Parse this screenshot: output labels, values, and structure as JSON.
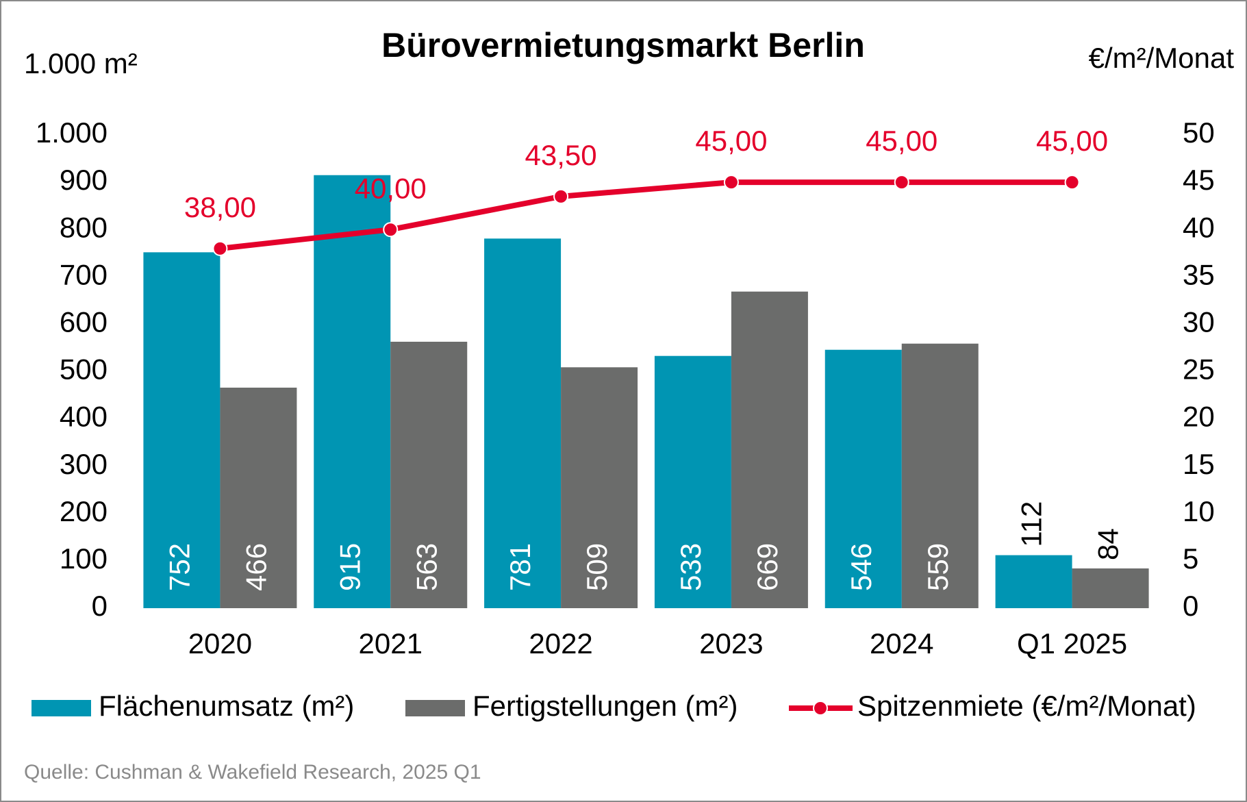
{
  "chart_data": {
    "type": "bar",
    "title": "Bürovermietungsmarkt Berlin",
    "y_axis_label": "1.000 m²",
    "y2_axis_label": "€/m²/Monat",
    "source": "Quelle: Cushman & Wakefield Research, 2025 Q1",
    "categories": [
      "2020",
      "2021",
      "2022",
      "2023",
      "2024",
      "Q1 2025"
    ],
    "series": [
      {
        "name": "Flächenumsatz (m²)",
        "type": "bar",
        "color": "#0095b3",
        "values": [
          752,
          915,
          781,
          533,
          546,
          112
        ]
      },
      {
        "name": "Fertigstellungen (m²)",
        "type": "bar",
        "color": "#6b6c6b",
        "values": [
          466,
          563,
          509,
          669,
          559,
          84
        ]
      },
      {
        "name": "Spitzenmiete (€/m²/Monat)",
        "type": "line",
        "axis": "y2",
        "color": "#e4002b",
        "values": [
          38,
          40,
          43.5,
          45,
          45,
          45
        ],
        "value_labels": [
          "38,00",
          "40,00",
          "43,50",
          "45,00",
          "45,00",
          "45,00"
        ]
      }
    ],
    "ylim": [
      0,
      1000
    ],
    "yticks": [
      0,
      100,
      200,
      300,
      400,
      500,
      600,
      700,
      800,
      900,
      {
        "value": 1000,
        "label": "1.000"
      }
    ],
    "y2lim": [
      0,
      50
    ],
    "y2ticks": [
      0,
      5,
      10,
      15,
      20,
      25,
      30,
      35,
      40,
      45,
      50
    ],
    "grid": false,
    "legend": "bottom"
  }
}
